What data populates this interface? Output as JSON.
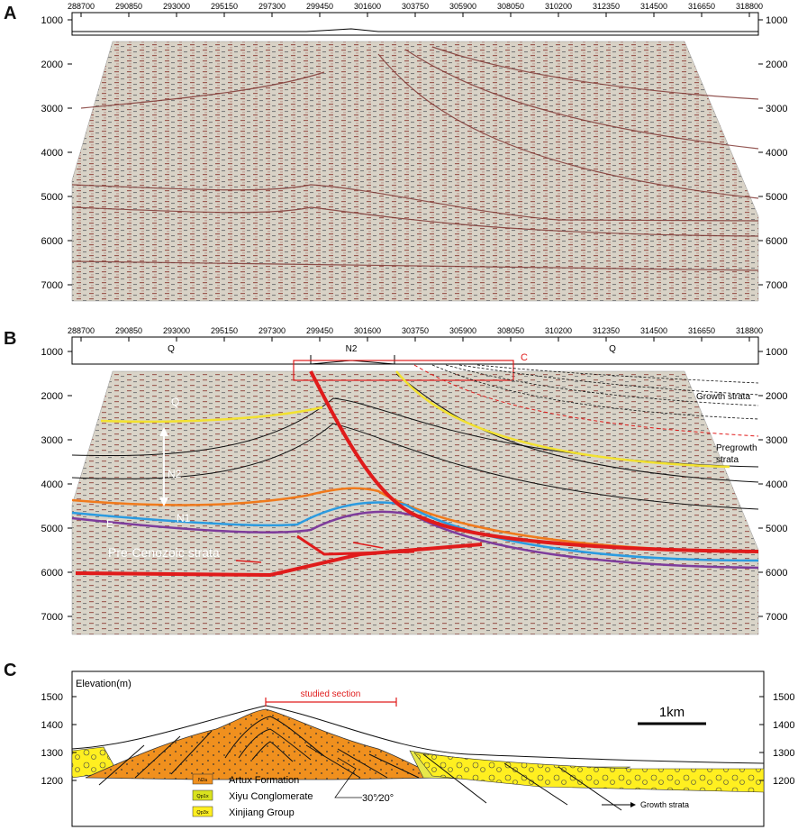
{
  "panels": {
    "a": {
      "letter": "A",
      "top_ticks": [
        "288700",
        "290850",
        "293000",
        "295150",
        "297300",
        "299450",
        "301600",
        "303750",
        "305900",
        "308050",
        "310200",
        "312350",
        "314500",
        "316650",
        "318800"
      ],
      "depth_ticks": [
        "1000",
        "2000",
        "3000",
        "4000",
        "5000",
        "6000",
        "7000"
      ]
    },
    "b": {
      "letter": "B",
      "top_ticks": [
        "288700",
        "290850",
        "293000",
        "295150",
        "297300",
        "299450",
        "301600",
        "303750",
        "305900",
        "308050",
        "310200",
        "312350",
        "314500",
        "316650",
        "318800"
      ],
      "depth_ticks": [
        "1000",
        "2000",
        "3000",
        "4000",
        "5000",
        "6000",
        "7000"
      ],
      "surface_labels": {
        "left": "Q",
        "middle": "N2",
        "right": "Q"
      },
      "inset_marker": "C",
      "labels": {
        "growth_strata": "Growth strata",
        "pregrowth_line1": "Pregrowth",
        "pregrowth_line2": "strata",
        "q": "Q",
        "n2": "N2",
        "n1": "N1",
        "e": "E",
        "pre_cenozoic": "Pre-Cenozoic strata"
      },
      "colors": {
        "fault": "#e01b1b",
        "q_base": "#f2e130",
        "n2_base": "#f07a1c",
        "n1_base": "#2b9be0",
        "e_base": "#7e3c9c"
      }
    },
    "c": {
      "letter": "C",
      "elevation_label": "Elevation(m)",
      "elevation_ticks": [
        "1500",
        "1400",
        "1300",
        "1200"
      ],
      "studied_section": "studied section",
      "scale_bar": "1km",
      "dip_label": "30°∕20°",
      "growth_strata": "Growth strata",
      "legend": [
        {
          "code": "N2a",
          "name": "Artux Formation",
          "color": "#f0901e"
        },
        {
          "code": "Qp1x",
          "name": "Xiyu Conglomerate",
          "color": "#d9e21e"
        },
        {
          "code": "Qp3x",
          "name": "Xinjiang Group",
          "color": "#ffef20"
        }
      ]
    }
  }
}
